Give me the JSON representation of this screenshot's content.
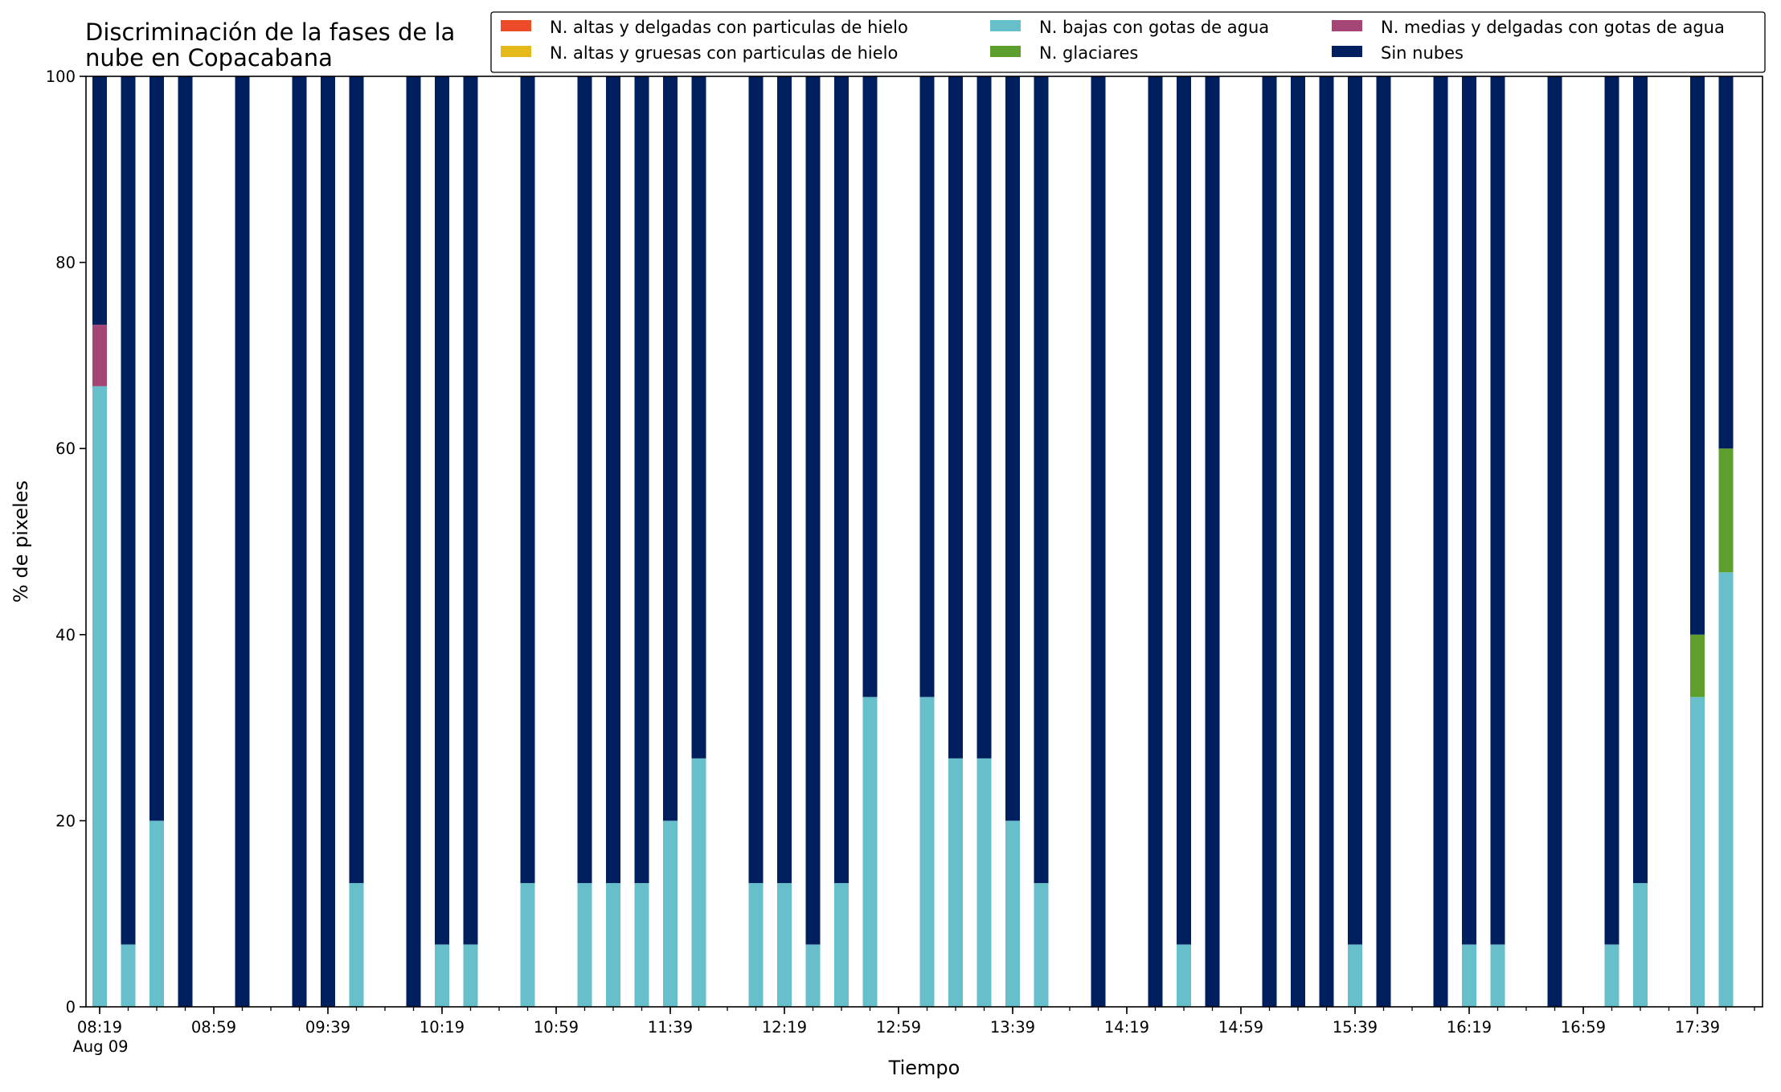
{
  "chart_data": {
    "type": "bar",
    "stacked": true,
    "title": "Discriminación de la fases de la\nnube en Copacabana",
    "xlabel": "Tiempo",
    "ylabel": "% de pixeles",
    "ylim": [
      0,
      100
    ],
    "yticks": [
      0,
      20,
      40,
      60,
      80,
      100
    ],
    "grid": false,
    "legend_position": "top-right",
    "categories": [
      "08:19",
      "08:29",
      "08:39",
      "08:49",
      "08:59",
      "09:09",
      "09:19",
      "09:29",
      "09:39",
      "09:49",
      "09:59",
      "10:09",
      "10:19",
      "10:29",
      "10:39",
      "10:49",
      "10:59",
      "11:09",
      "11:19",
      "11:29",
      "11:39",
      "11:49",
      "11:59",
      "12:09",
      "12:19",
      "12:29",
      "12:39",
      "12:49",
      "12:59",
      "13:09",
      "13:19",
      "13:29",
      "13:39",
      "13:49",
      "13:59",
      "14:09",
      "14:19",
      "14:29",
      "14:39",
      "14:49",
      "14:59",
      "15:09",
      "15:19",
      "15:29",
      "15:39",
      "15:49",
      "15:59",
      "16:09",
      "16:19",
      "16:29",
      "16:39",
      "16:49",
      "16:59",
      "17:09",
      "17:19",
      "17:29",
      "17:39",
      "17:49",
      "17:59"
    ],
    "xtick_labels": [
      {
        "category": "08:19",
        "label": "08:19",
        "sublabel": "Aug 09"
      },
      {
        "category": "08:59",
        "label": "08:59"
      },
      {
        "category": "09:39",
        "label": "09:39"
      },
      {
        "category": "10:19",
        "label": "10:19"
      },
      {
        "category": "10:59",
        "label": "10:59"
      },
      {
        "category": "11:39",
        "label": "11:39"
      },
      {
        "category": "12:19",
        "label": "12:19"
      },
      {
        "category": "12:59",
        "label": "12:59"
      },
      {
        "category": "13:39",
        "label": "13:39"
      },
      {
        "category": "14:19",
        "label": "14:19"
      },
      {
        "category": "14:59",
        "label": "14:59"
      },
      {
        "category": "15:39",
        "label": "15:39"
      },
      {
        "category": "16:19",
        "label": "16:19"
      },
      {
        "category": "16:59",
        "label": "16:59"
      },
      {
        "category": "17:39",
        "label": "17:39"
      }
    ],
    "series": [
      {
        "name": "N. altas y delgadas con particulas de hielo",
        "color": "#ee4b2b",
        "values": [
          0,
          0,
          0,
          0,
          null,
          0,
          null,
          0,
          0,
          0,
          null,
          0,
          0,
          0,
          null,
          0,
          null,
          0,
          0,
          0,
          0,
          0,
          null,
          0,
          0,
          0,
          0,
          0,
          null,
          0,
          0,
          0,
          0,
          0,
          null,
          0,
          null,
          0,
          0,
          0,
          null,
          0,
          0,
          0,
          0,
          0,
          null,
          0,
          0,
          0,
          null,
          0,
          null,
          0,
          0,
          null,
          0,
          0,
          null
        ]
      },
      {
        "name": "N. altas y gruesas con particulas de hielo",
        "color": "#e5b81c",
        "values": [
          0,
          0,
          0,
          0,
          null,
          0,
          null,
          0,
          0,
          0,
          null,
          0,
          0,
          0,
          null,
          0,
          null,
          0,
          0,
          0,
          0,
          0,
          null,
          0,
          0,
          0,
          0,
          0,
          null,
          0,
          0,
          0,
          0,
          0,
          null,
          0,
          null,
          0,
          0,
          0,
          null,
          0,
          0,
          0,
          0,
          0,
          null,
          0,
          0,
          0,
          null,
          0,
          null,
          0,
          0,
          null,
          0,
          0,
          null
        ]
      },
      {
        "name": "N. bajas con gotas de agua",
        "color": "#66bfca",
        "values": [
          66.7,
          6.7,
          20,
          0,
          null,
          0,
          null,
          0,
          0,
          13.3,
          null,
          0,
          6.7,
          6.7,
          null,
          13.3,
          null,
          13.3,
          13.3,
          13.3,
          20,
          26.7,
          null,
          13.3,
          13.3,
          6.7,
          13.3,
          33.3,
          null,
          33.3,
          26.7,
          26.7,
          20,
          13.3,
          null,
          0,
          null,
          0,
          6.7,
          0,
          null,
          0,
          0,
          0,
          6.7,
          0,
          null,
          0,
          6.7,
          6.7,
          null,
          0,
          null,
          6.7,
          13.3,
          null,
          33.3,
          46.7,
          null
        ]
      },
      {
        "name": "N. glaciares",
        "color": "#5e9e2c",
        "values": [
          0,
          0,
          0,
          0,
          null,
          0,
          null,
          0,
          0,
          0,
          null,
          0,
          0,
          0,
          null,
          0,
          null,
          0,
          0,
          0,
          0,
          0,
          null,
          0,
          0,
          0,
          0,
          0,
          null,
          0,
          0,
          0,
          0,
          0,
          null,
          0,
          null,
          0,
          0,
          0,
          null,
          0,
          0,
          0,
          0,
          0,
          null,
          0,
          0,
          0,
          null,
          0,
          null,
          0,
          0,
          null,
          6.7,
          13.3,
          null
        ]
      },
      {
        "name": "N. medias y delgadas con gotas de agua",
        "color": "#a44576",
        "values": [
          6.6,
          0,
          0,
          0,
          null,
          0,
          null,
          0,
          0,
          0,
          null,
          0,
          0,
          0,
          null,
          0,
          null,
          0,
          0,
          0,
          0,
          0,
          null,
          0,
          0,
          0,
          0,
          0,
          null,
          0,
          0,
          0,
          0,
          0,
          null,
          0,
          null,
          0,
          0,
          0,
          null,
          0,
          0,
          0,
          0,
          0,
          null,
          0,
          0,
          0,
          null,
          0,
          null,
          0,
          0,
          null,
          0,
          0,
          null
        ]
      },
      {
        "name": "Sin nubes",
        "color": "#001f5f",
        "values": [
          26.7,
          93.3,
          80,
          100,
          null,
          100,
          null,
          100,
          100,
          86.7,
          null,
          100,
          93.3,
          93.3,
          null,
          86.7,
          null,
          86.7,
          86.7,
          86.7,
          80,
          73.3,
          null,
          86.7,
          86.7,
          93.3,
          86.7,
          66.7,
          null,
          66.7,
          73.3,
          73.3,
          80,
          86.7,
          null,
          100,
          null,
          100,
          93.3,
          100,
          null,
          100,
          100,
          100,
          93.3,
          100,
          null,
          100,
          93.3,
          93.3,
          null,
          100,
          null,
          93.3,
          86.7,
          null,
          60,
          40,
          null
        ]
      }
    ],
    "legend_columns": [
      [
        "N. altas y delgadas con particulas de hielo",
        "N. altas y gruesas con particulas de hielo"
      ],
      [
        "N. bajas con gotas de agua",
        "N. glaciares"
      ],
      [
        "N. medias y delgadas con gotas de agua",
        "Sin nubes"
      ]
    ]
  }
}
